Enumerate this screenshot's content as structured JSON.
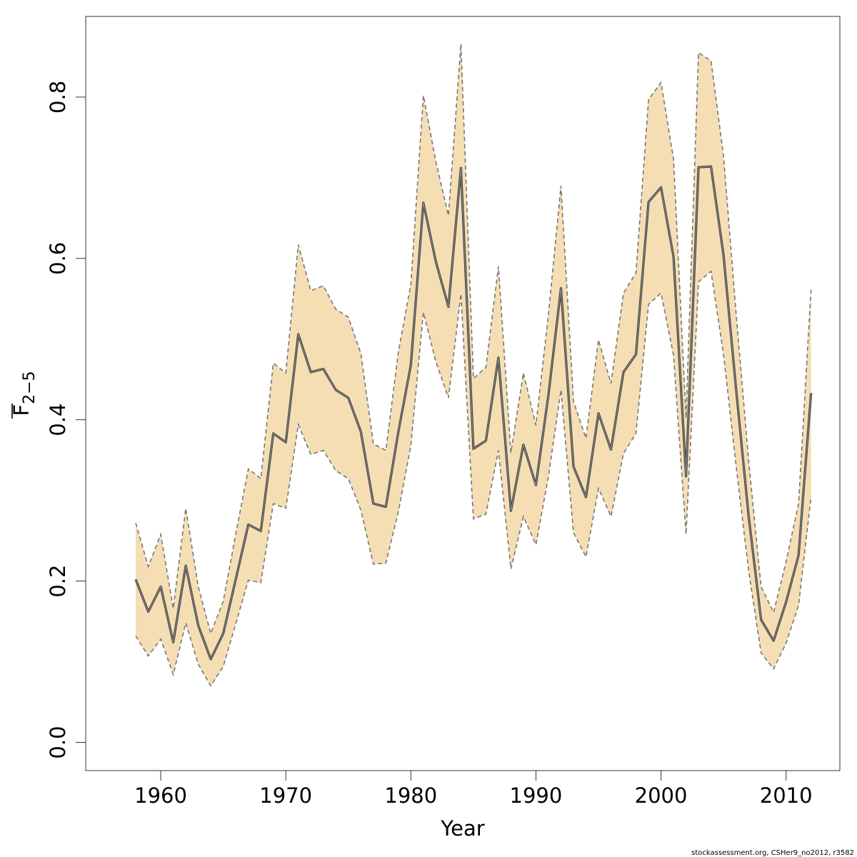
{
  "chart_data": {
    "type": "line",
    "xlabel": "Year",
    "ylabel": {
      "main": "F",
      "subscript": "2−5",
      "overline": true
    },
    "xlim": [
      1954,
      2014.3
    ],
    "ylim": [
      -0.035,
      0.9
    ],
    "xticks": [
      1960,
      1970,
      1980,
      1990,
      2000,
      2010
    ],
    "yticks": [
      0.0,
      0.2,
      0.4,
      0.6,
      0.8
    ],
    "ytick_labels": [
      "0.0",
      "0.2",
      "0.4",
      "0.6",
      "0.8"
    ],
    "grid": false,
    "band_fill": "#f5deb3",
    "line_color": "#555555",
    "bound_color": "#777777",
    "x": [
      1958,
      1959,
      1960,
      1961,
      1962,
      1963,
      1964,
      1965,
      1966,
      1967,
      1968,
      1969,
      1970,
      1971,
      1972,
      1973,
      1974,
      1975,
      1976,
      1977,
      1978,
      1979,
      1980,
      1981,
      1982,
      1983,
      1984,
      1985,
      1986,
      1987,
      1988,
      1989,
      1990,
      1991,
      1992,
      1993,
      1994,
      1995,
      1996,
      1997,
      1998,
      1999,
      2000,
      2001,
      2002,
      2003,
      2004,
      2005,
      2006,
      2007,
      2008,
      2009,
      2010,
      2011,
      2012
    ],
    "series": [
      {
        "role": "estimate",
        "values": [
          0.202,
          0.162,
          0.193,
          0.124,
          0.219,
          0.145,
          0.103,
          0.135,
          0.202,
          0.27,
          0.262,
          0.383,
          0.372,
          0.506,
          0.459,
          0.463,
          0.437,
          0.427,
          0.385,
          0.296,
          0.292,
          0.385,
          0.468,
          0.669,
          0.596,
          0.54,
          0.712,
          0.364,
          0.374,
          0.477,
          0.287,
          0.369,
          0.319,
          0.431,
          0.563,
          0.342,
          0.304,
          0.408,
          0.363,
          0.459,
          0.481,
          0.67,
          0.688,
          0.602,
          0.33,
          0.713,
          0.714,
          0.604,
          0.439,
          0.281,
          0.152,
          0.126,
          0.174,
          0.232,
          0.433
        ]
      },
      {
        "role": "lower",
        "values": [
          0.132,
          0.107,
          0.128,
          0.084,
          0.148,
          0.097,
          0.07,
          0.094,
          0.147,
          0.201,
          0.198,
          0.296,
          0.29,
          0.394,
          0.357,
          0.362,
          0.337,
          0.327,
          0.288,
          0.221,
          0.222,
          0.286,
          0.368,
          0.533,
          0.472,
          0.427,
          0.556,
          0.277,
          0.283,
          0.362,
          0.215,
          0.28,
          0.245,
          0.33,
          0.437,
          0.26,
          0.23,
          0.315,
          0.28,
          0.358,
          0.383,
          0.543,
          0.557,
          0.48,
          0.258,
          0.571,
          0.584,
          0.481,
          0.344,
          0.213,
          0.111,
          0.091,
          0.123,
          0.17,
          0.305
        ]
      },
      {
        "role": "upper",
        "values": [
          0.272,
          0.218,
          0.258,
          0.166,
          0.29,
          0.193,
          0.135,
          0.175,
          0.258,
          0.339,
          0.327,
          0.47,
          0.458,
          0.617,
          0.56,
          0.566,
          0.537,
          0.527,
          0.482,
          0.37,
          0.362,
          0.484,
          0.568,
          0.802,
          0.72,
          0.653,
          0.866,
          0.451,
          0.465,
          0.59,
          0.359,
          0.458,
          0.393,
          0.531,
          0.69,
          0.423,
          0.377,
          0.499,
          0.445,
          0.557,
          0.582,
          0.797,
          0.818,
          0.723,
          0.402,
          0.855,
          0.845,
          0.727,
          0.533,
          0.35,
          0.193,
          0.161,
          0.224,
          0.296,
          0.562
        ]
      }
    ]
  },
  "credit": "stockassessment.org, CSHer9_no2012, r3582"
}
